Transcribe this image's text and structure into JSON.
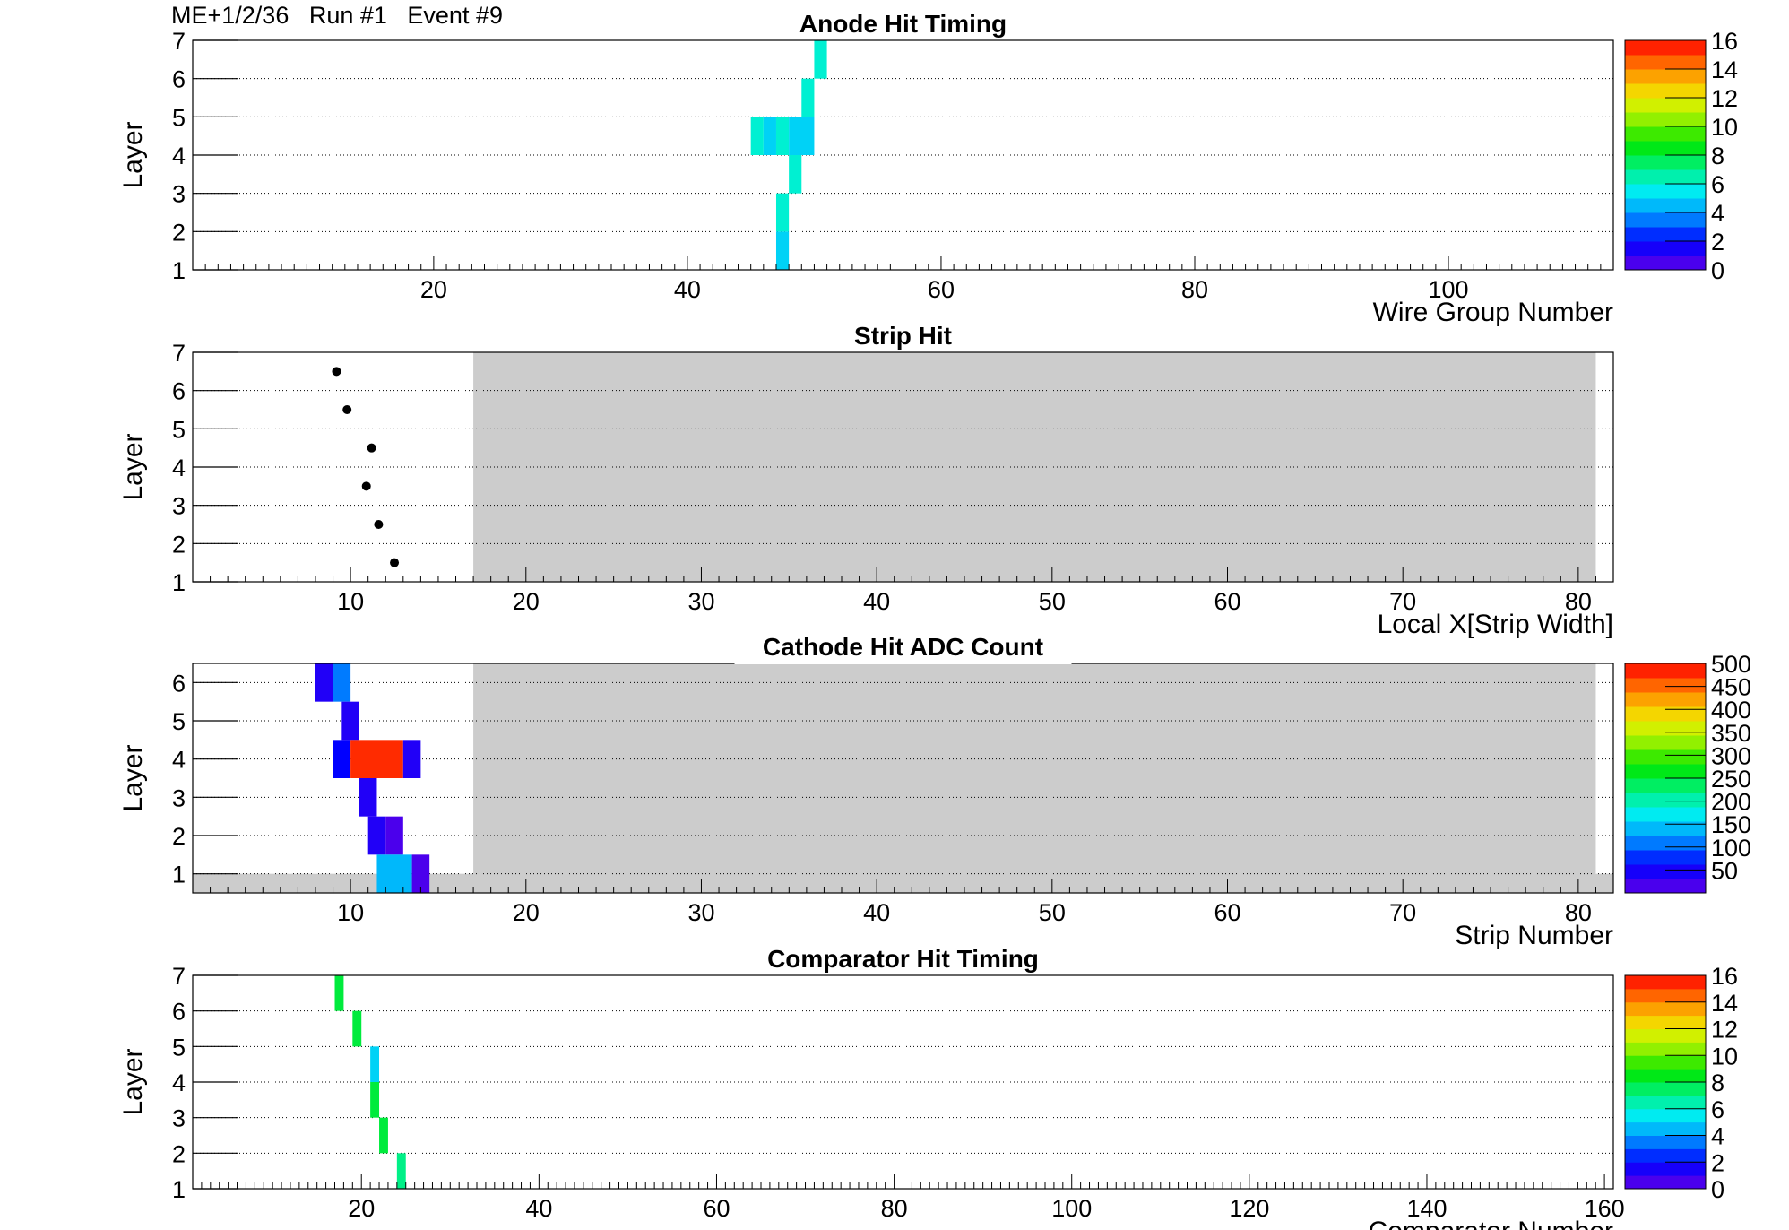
{
  "header": {
    "run_info": "ME+1/2/36   Run #1   Event #9"
  },
  "chart_data": [
    {
      "type": "heatmap",
      "title": "Anode Hit Timing",
      "xlabel": "Wire Group Number",
      "ylabel": "Layer",
      "xlim": [
        1,
        113
      ],
      "ylim": [
        1,
        7
      ],
      "xticks": [
        20,
        40,
        60,
        80,
        100
      ],
      "yticks": [
        1,
        2,
        3,
        4,
        5,
        6,
        7
      ],
      "grid": "horizontal dotted",
      "zlim": [
        0,
        16
      ],
      "zticks": [
        0,
        2,
        4,
        6,
        8,
        10,
        12,
        14,
        16
      ],
      "cells": [
        {
          "x0": 47.0,
          "x1": 48.0,
          "y0": 1,
          "y1": 2,
          "z": 5
        },
        {
          "x0": 47.0,
          "x1": 48.0,
          "y0": 2,
          "y1": 3,
          "z": 6
        },
        {
          "x0": 48.0,
          "x1": 49.0,
          "y0": 3,
          "y1": 4,
          "z": 6
        },
        {
          "x0": 45.0,
          "x1": 46.0,
          "y0": 4,
          "y1": 5,
          "z": 6
        },
        {
          "x0": 46.0,
          "x1": 47.0,
          "y0": 4,
          "y1": 5,
          "z": 5
        },
        {
          "x0": 47.0,
          "x1": 48.0,
          "y0": 4,
          "y1": 5,
          "z": 6
        },
        {
          "x0": 48.0,
          "x1": 50.0,
          "y0": 4,
          "y1": 5,
          "z": 5
        },
        {
          "x0": 49.0,
          "x1": 50.0,
          "y0": 5,
          "y1": 6,
          "z": 6
        },
        {
          "x0": 50.0,
          "x1": 51.0,
          "y0": 6,
          "y1": 7,
          "z": 6
        }
      ]
    },
    {
      "type": "scatter",
      "title": "Strip Hit",
      "xlabel": "Local X[Strip Width]",
      "ylabel": "Layer",
      "xlim": [
        1,
        82
      ],
      "ylim": [
        1,
        7
      ],
      "xticks": [
        10,
        20,
        30,
        40,
        50,
        60,
        70,
        80
      ],
      "yticks": [
        1,
        2,
        3,
        4,
        5,
        6,
        7
      ],
      "grid": "horizontal dotted",
      "inactive_region": [
        [
          17,
          81,
          1,
          7
        ]
      ],
      "points": [
        {
          "x": 12.5,
          "y": 1.5
        },
        {
          "x": 11.6,
          "y": 2.5
        },
        {
          "x": 10.9,
          "y": 3.5
        },
        {
          "x": 11.2,
          "y": 4.5
        },
        {
          "x": 9.8,
          "y": 5.5
        },
        {
          "x": 9.2,
          "y": 6.5
        }
      ]
    },
    {
      "type": "heatmap",
      "title": "Cathode Hit ADC Count",
      "xlabel": "Strip Number",
      "ylabel": "Layer",
      "xlim": [
        1,
        82
      ],
      "ylim": [
        0.5,
        6.5
      ],
      "xticks": [
        10,
        20,
        30,
        40,
        50,
        60,
        70,
        80
      ],
      "yticks": [
        1,
        2,
        3,
        4,
        5,
        6
      ],
      "grid": "horizontal dotted",
      "zlim": [
        0,
        500
      ],
      "zticks": [
        50,
        100,
        150,
        200,
        250,
        300,
        350,
        400,
        450,
        500
      ],
      "inactive_region": [
        [
          17,
          81,
          0.5,
          6.5
        ],
        [
          1,
          82,
          0.5,
          1.0
        ]
      ],
      "cells": [
        {
          "x0": 8,
          "x1": 9,
          "y0": 5.5,
          "y1": 6.5,
          "z": 40
        },
        {
          "x0": 9,
          "x1": 10,
          "y0": 5.5,
          "y1": 6.5,
          "z": 110
        },
        {
          "x0": 9.5,
          "x1": 10.5,
          "y0": 4.5,
          "y1": 5.5,
          "z": 40
        },
        {
          "x0": 9,
          "x1": 10,
          "y0": 3.5,
          "y1": 4.5,
          "z": 60
        },
        {
          "x0": 10,
          "x1": 13,
          "y0": 3.5,
          "y1": 4.5,
          "z": 480
        },
        {
          "x0": 13,
          "x1": 14,
          "y0": 3.5,
          "y1": 4.5,
          "z": 40
        },
        {
          "x0": 10.5,
          "x1": 11.5,
          "y0": 2.5,
          "y1": 3.5,
          "z": 40
        },
        {
          "x0": 11,
          "x1": 12,
          "y0": 1.5,
          "y1": 2.5,
          "z": 40
        },
        {
          "x0": 12,
          "x1": 13,
          "y0": 1.5,
          "y1": 2.5,
          "z": 15
        },
        {
          "x0": 11.5,
          "x1": 13.5,
          "y0": 0.5,
          "y1": 1.5,
          "z": 140
        },
        {
          "x0": 13.5,
          "x1": 14.5,
          "y0": 0.5,
          "y1": 1.5,
          "z": 15
        }
      ]
    },
    {
      "type": "heatmap",
      "title": "Comparator Hit Timing",
      "xlabel": "Comparator Number",
      "ylabel": "Layer",
      "xlim": [
        1,
        161
      ],
      "ylim": [
        1,
        7
      ],
      "xticks": [
        20,
        40,
        60,
        80,
        100,
        120,
        140,
        160
      ],
      "yticks": [
        1,
        2,
        3,
        4,
        5,
        6,
        7
      ],
      "grid": "horizontal dotted",
      "zlim": [
        0,
        16
      ],
      "zticks": [
        0,
        2,
        4,
        6,
        8,
        10,
        12,
        14,
        16
      ],
      "cells": [
        {
          "x0": 24,
          "x1": 25,
          "y0": 1,
          "y1": 2,
          "z": 7
        },
        {
          "x0": 22,
          "x1": 23,
          "y0": 2,
          "y1": 3,
          "z": 8
        },
        {
          "x0": 21,
          "x1": 22,
          "y0": 3,
          "y1": 4,
          "z": 8
        },
        {
          "x0": 21,
          "x1": 22,
          "y0": 4,
          "y1": 5,
          "z": 5
        },
        {
          "x0": 19,
          "x1": 20,
          "y0": 5,
          "y1": 6,
          "z": 8
        },
        {
          "x0": 17,
          "x1": 18,
          "y0": 6,
          "y1": 7,
          "z": 8
        }
      ]
    }
  ]
}
